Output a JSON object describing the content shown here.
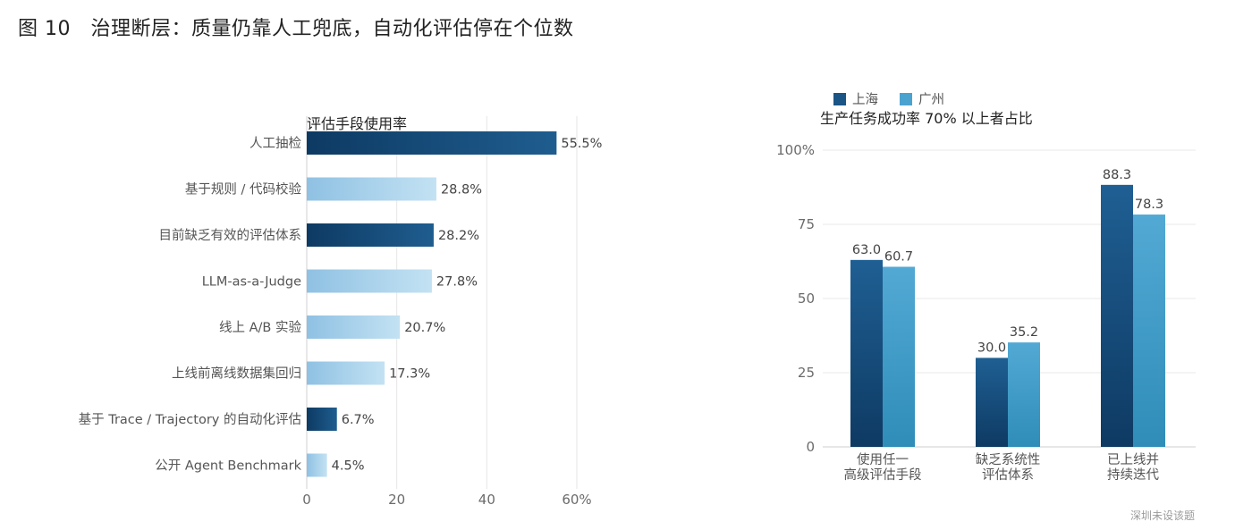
{
  "figure_title": "图 10　治理断层：质量仍靠人工兜底，自动化评估停在个位数",
  "source_note": "深圳未设该题",
  "chart_data": [
    {
      "type": "bar",
      "orientation": "horizontal",
      "title": "评估手段使用率",
      "categories": [
        "人工抽检",
        "基于规则 / 代码校验",
        "目前缺乏有效的评估体系",
        "LLM-as-a-Judge",
        "线上 A/B 实验",
        "上线前离线数据集回归",
        "基于 Trace / Trajectory 的自动化评估",
        "公开 Agent Benchmark"
      ],
      "values": [
        55.5,
        28.8,
        28.2,
        27.8,
        20.7,
        17.3,
        6.7,
        4.5
      ],
      "value_labels": [
        "55.5%",
        "28.8%",
        "28.2%",
        "27.8%",
        "20.7%",
        "17.3%",
        "6.7%",
        "4.5%"
      ],
      "highlight": [
        true,
        false,
        true,
        false,
        false,
        false,
        true,
        false
      ],
      "xlim": [
        0,
        60
      ],
      "xticks": [
        "0",
        "20",
        "40",
        "60%"
      ],
      "grid": true,
      "colors": {
        "highlight": [
          "#0d3a63",
          "#1f5d8f"
        ],
        "normal": [
          "#8fc1e3",
          "#c3e2f3"
        ],
        "grid": "#e6e6e6"
      }
    },
    {
      "type": "bar",
      "title": "生产任务成功率 70% 以上者占比",
      "categories": [
        [
          "使用任一",
          "高级评估手段"
        ],
        [
          "缺乏系统性",
          "评估体系"
        ],
        [
          "已上线并",
          "持续迭代"
        ]
      ],
      "series": [
        {
          "name": "上海",
          "values": [
            63.0,
            30.0,
            88.3
          ],
          "labels": [
            "63.0",
            "30.0",
            "88.3"
          ],
          "color": "#1a5586"
        },
        {
          "name": "广州",
          "values": [
            60.7,
            35.2,
            78.3
          ],
          "labels": [
            "60.7",
            "35.2",
            "78.3"
          ],
          "color": "#4aa3cf"
        }
      ],
      "ylim": [
        0,
        100
      ],
      "yticks": [
        "0",
        "25",
        "50",
        "75",
        "100%"
      ],
      "grid": true,
      "legend": "top-left"
    }
  ]
}
